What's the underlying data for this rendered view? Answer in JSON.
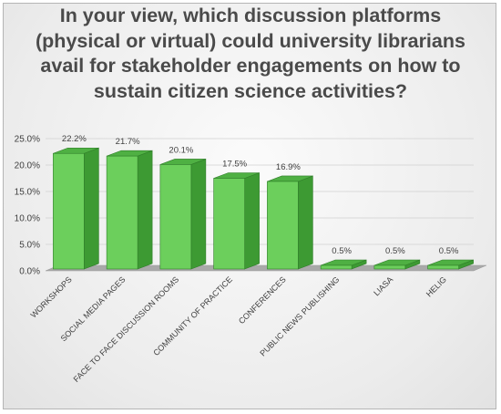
{
  "chart_data": {
    "type": "bar",
    "title": "In your view, which discussion platforms\n(physical or virtual) could university librarians\navail for stakeholder engagements on how to\nsustain citizen science activities?",
    "categories": [
      "WORKSHOPS",
      "SOCIAL MEDIA PAGES",
      "FACE TO FACE DISCUSSION ROOMS",
      "COMMUNITY OF PRACTICE",
      "CONFERENCES",
      "PUBLIC NEWS PUBLISHING",
      "LIASA",
      "HELIG"
    ],
    "values": [
      22.2,
      21.7,
      20.1,
      17.5,
      16.9,
      0.5,
      0.5,
      0.5
    ],
    "data_labels": [
      "22.2%",
      "21.7%",
      "20.1%",
      "17.5%",
      "16.9%",
      "0.5%",
      "0.5%",
      "0.5%"
    ],
    "y_ticks": [
      "0.0%",
      "5.0%",
      "10.0%",
      "15.0%",
      "20.0%",
      "25.0%"
    ],
    "ylim": [
      0,
      25
    ],
    "xlabel": "",
    "ylabel": "",
    "grid": true,
    "style": "3d-column",
    "colors": {
      "bar_front": "#6ccf5c",
      "bar_side": "#3d9a33",
      "bar_top": "#4fb043",
      "bar_stroke": "#2f7d29",
      "floor": "#a9a9a9",
      "grid": "#d0d0d0"
    }
  }
}
